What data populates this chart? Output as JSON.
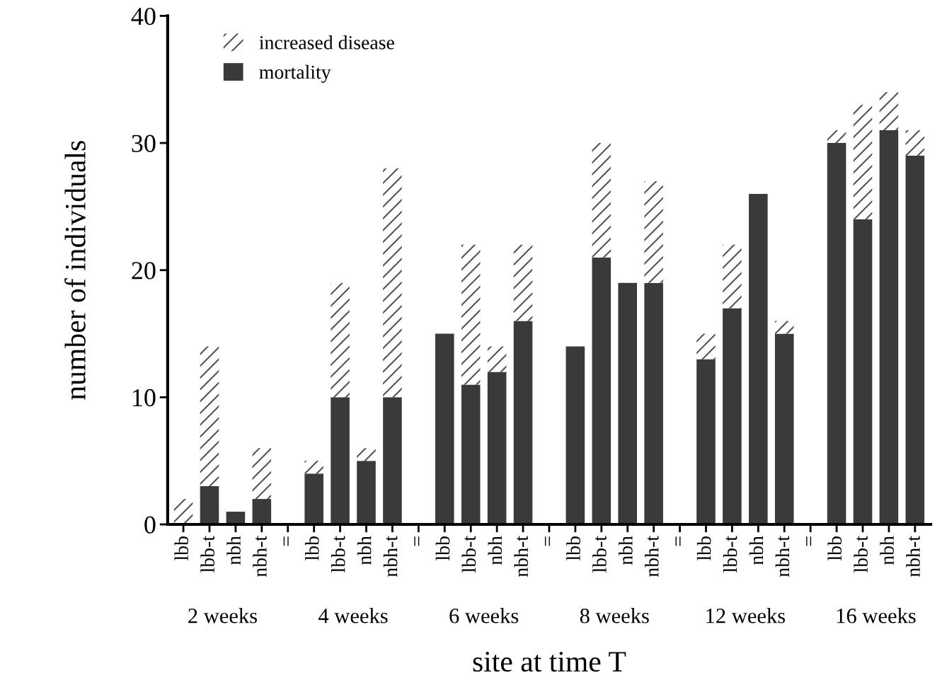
{
  "chart_data": {
    "type": "bar",
    "stacked": true,
    "xlabel": "site at time T",
    "ylabel": "number of individuals",
    "categories": [
      "lbb",
      "lbb-t",
      "nbh",
      "nbh-t",
      "=",
      "lbb",
      "lbb-t",
      "nbh",
      "nbh-t",
      "=",
      "lbb",
      "lbb-t",
      "nbh",
      "nbh-t",
      "=",
      "lbb",
      "lbb-t",
      "nbh",
      "nbh-t",
      "=",
      "lbb",
      "lbb-t",
      "nbh",
      "nbh-t",
      "=",
      "lbb",
      "lbb-t",
      "nbh",
      "nbh-t"
    ],
    "series": [
      {
        "name": "mortality",
        "color": "#3a3a3a",
        "values": [
          0,
          3,
          1,
          2,
          null,
          4,
          10,
          5,
          10,
          null,
          15,
          11,
          12,
          16,
          null,
          14,
          21,
          19,
          19,
          null,
          13,
          17,
          26,
          15,
          null,
          30,
          24,
          31,
          29
        ]
      },
      {
        "name": "increased disease",
        "color": "#ffffff",
        "values": [
          2,
          11,
          0,
          4,
          null,
          1,
          9,
          1,
          18,
          null,
          0,
          11,
          2,
          6,
          null,
          0,
          9,
          0,
          8,
          null,
          2,
          5,
          0,
          1,
          null,
          1,
          9,
          3,
          2
        ]
      }
    ],
    "annotations": [
      "2 weeks",
      "4 weeks",
      "6 weeks",
      "8 weeks",
      "12 weeks",
      "16 weeks"
    ],
    "ylim": [
      0,
      40
    ],
    "yticks": [
      0,
      10,
      20,
      30,
      40
    ],
    "grid": false,
    "legend": "top left"
  }
}
